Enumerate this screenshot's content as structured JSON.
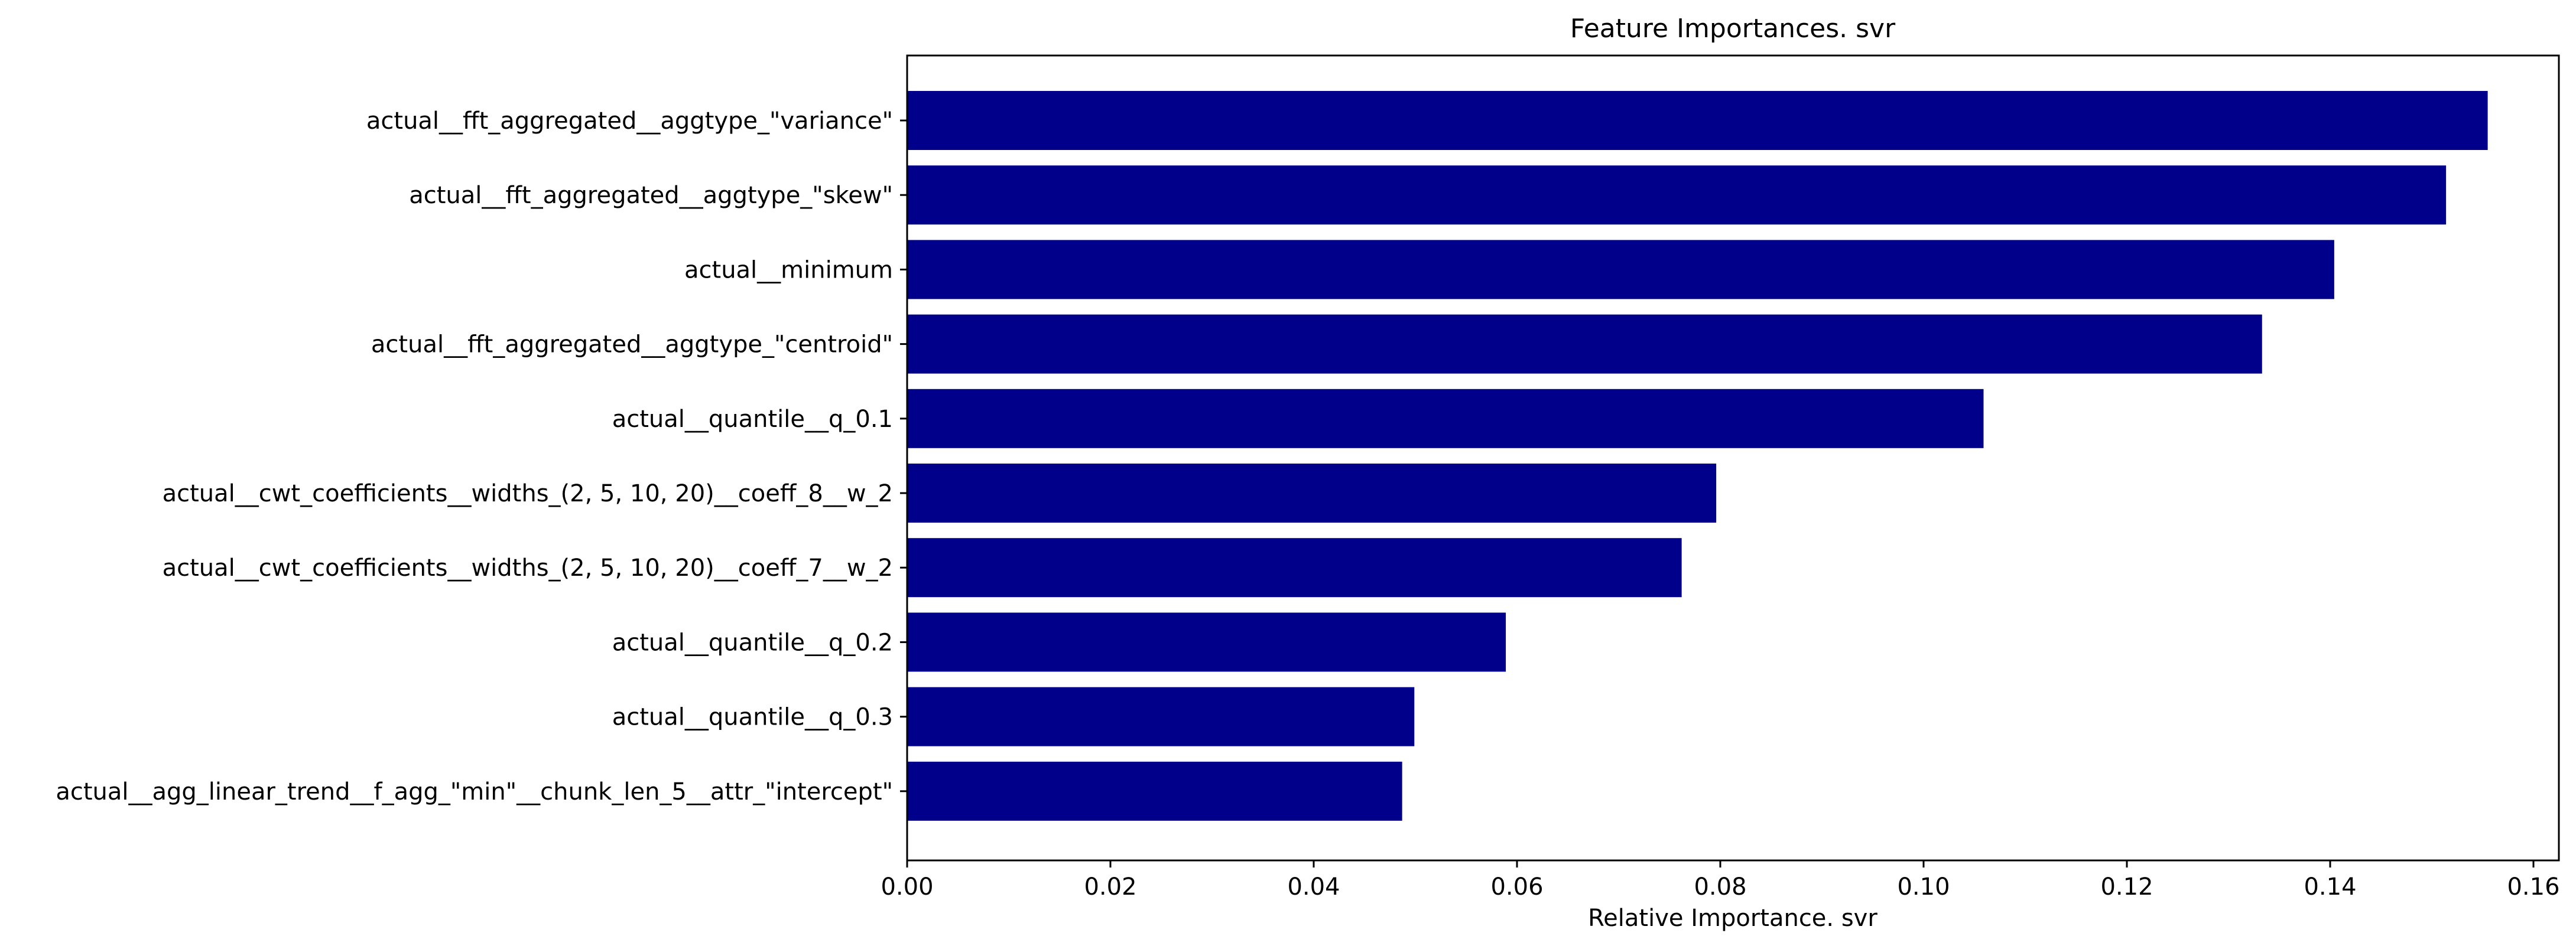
{
  "chart_data": {
    "type": "bar",
    "orientation": "horizontal",
    "title": "Feature Importances. svr",
    "xlabel": "Relative Importance. svr",
    "ylabel": "",
    "xlim": [
      0.0,
      0.1625
    ],
    "xticks": [
      "0.00",
      "0.02",
      "0.04",
      "0.06",
      "0.08",
      "0.10",
      "0.12",
      "0.14",
      "0.16"
    ],
    "grid": false,
    "bar_color": "#00008b",
    "categories": [
      "actual__fft_aggregated__aggtype_\"variance\"",
      "actual__fft_aggregated__aggtype_\"skew\"",
      "actual__minimum",
      "actual__fft_aggregated__aggtype_\"centroid\"",
      "actual__quantile__q_0.1",
      "actual__cwt_coefficients__widths_(2, 5, 10, 20)__coeff_8__w_2",
      "actual__cwt_coefficients__widths_(2, 5, 10, 20)__coeff_7__w_2",
      "actual__quantile__q_0.2",
      "actual__quantile__q_0.3",
      "actual__agg_linear_trend__f_agg_\"min\"__chunk_len_5__attr_\"intercept\""
    ],
    "values": [
      0.1555,
      0.1514,
      0.1404,
      0.1333,
      0.1059,
      0.0796,
      0.0762,
      0.0589,
      0.0499,
      0.0487
    ]
  }
}
